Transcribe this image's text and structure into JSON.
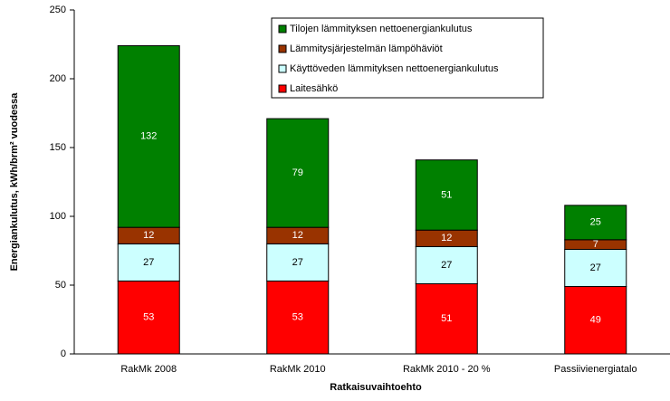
{
  "chart_data": {
    "type": "stacked_bar",
    "categories": [
      "RakMk 2008",
      "RakMk 2010",
      "RakMk 2010 - 20 %",
      "Passiivienergiatalo"
    ],
    "series": [
      {
        "name": "Laitesähkö",
        "color": "#ff0000",
        "values": [
          53,
          53,
          51,
          49
        ]
      },
      {
        "name": "Käyttöveden lämmityksen nettoenergiankulutus",
        "color": "#ccffff",
        "values": [
          27,
          27,
          27,
          27
        ]
      },
      {
        "name": "Lämmitysjärjestelmän lämpöhäviöt",
        "color": "#993300",
        "values": [
          12,
          12,
          12,
          7
        ]
      },
      {
        "name": "Tilojen lämmityksen nettoenergiankulutus",
        "color": "#008000",
        "values": [
          132,
          79,
          51,
          25
        ]
      }
    ],
    "xlabel": "Ratkaisuvaihtoehto",
    "ylabel": "Energiankulutus, kWh/brm² vuodessa",
    "ylim": [
      0,
      250
    ],
    "yticks": [
      0,
      50,
      100,
      150,
      200,
      250
    ],
    "grid": false
  }
}
